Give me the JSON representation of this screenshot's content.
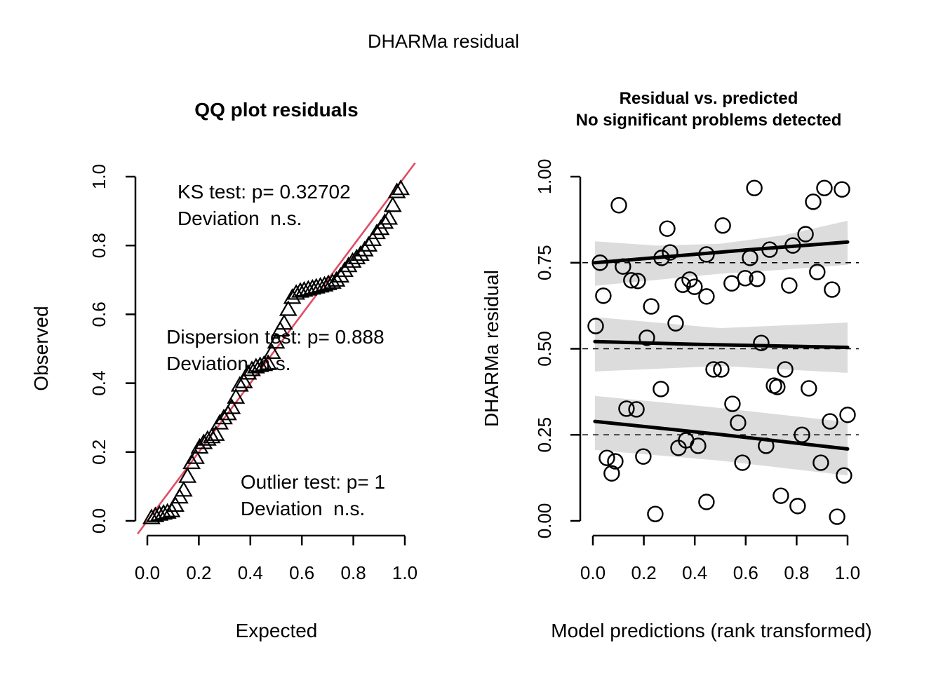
{
  "header": {
    "title": "DHARMa residual"
  },
  "colors": {
    "reference_line": "#e04e63",
    "band": "#dcdcdc",
    "marker": "#000000",
    "quantile_line": "#000000",
    "dashed_line": "#000000",
    "axis": "#000000"
  },
  "chart_data": [
    {
      "type": "scatter",
      "id": "qq",
      "title": "QQ plot residuals",
      "xlabel": "Expected",
      "ylabel": "Observed",
      "xlim": [
        0,
        1
      ],
      "ylim": [
        0,
        1
      ],
      "grid": false,
      "marker": "triangle-up-open",
      "xticks": [
        "0.0",
        "0.2",
        "0.4",
        "0.6",
        "0.8",
        "1.0"
      ],
      "yticks": [
        "0.0",
        "0.2",
        "0.4",
        "0.6",
        "0.8",
        "1.0"
      ],
      "reference_line": {
        "from": [
          0,
          0
        ],
        "to": [
          1,
          1
        ]
      },
      "annotations": [
        {
          "x": 0.117,
          "y": 0.937,
          "lines": [
            "KS test: p= 0.32702",
            "Deviation  n.s."
          ]
        },
        {
          "x": 0.074,
          "y": 0.515,
          "lines": [
            "Dispersion test: p= 0.888",
            "Deviation  n.s."
          ]
        },
        {
          "x": 0.362,
          "y": 0.094,
          "lines": [
            "Outlier test: p= 1",
            "Deviation  n.s."
          ]
        }
      ],
      "points": [
        [
          0.016,
          0.01
        ],
        [
          0.031,
          0.016
        ],
        [
          0.047,
          0.02
        ],
        [
          0.063,
          0.023
        ],
        [
          0.078,
          0.026
        ],
        [
          0.094,
          0.03
        ],
        [
          0.109,
          0.046
        ],
        [
          0.125,
          0.07
        ],
        [
          0.141,
          0.09
        ],
        [
          0.156,
          0.13
        ],
        [
          0.172,
          0.17
        ],
        [
          0.188,
          0.185
        ],
        [
          0.203,
          0.215
        ],
        [
          0.219,
          0.228
        ],
        [
          0.234,
          0.238
        ],
        [
          0.25,
          0.245
        ],
        [
          0.266,
          0.252
        ],
        [
          0.281,
          0.285
        ],
        [
          0.297,
          0.3
        ],
        [
          0.313,
          0.312
        ],
        [
          0.328,
          0.33
        ],
        [
          0.344,
          0.36
        ],
        [
          0.359,
          0.395
        ],
        [
          0.375,
          0.405
        ],
        [
          0.391,
          0.43
        ],
        [
          0.406,
          0.44
        ],
        [
          0.422,
          0.448
        ],
        [
          0.438,
          0.452
        ],
        [
          0.453,
          0.455
        ],
        [
          0.469,
          0.458
        ],
        [
          0.484,
          0.49
        ],
        [
          0.5,
          0.52
        ],
        [
          0.516,
          0.555
        ],
        [
          0.531,
          0.575
        ],
        [
          0.547,
          0.615
        ],
        [
          0.563,
          0.65
        ],
        [
          0.578,
          0.662
        ],
        [
          0.594,
          0.668
        ],
        [
          0.609,
          0.671
        ],
        [
          0.625,
          0.674
        ],
        [
          0.641,
          0.677
        ],
        [
          0.656,
          0.68
        ],
        [
          0.672,
          0.683
        ],
        [
          0.688,
          0.686
        ],
        [
          0.703,
          0.69
        ],
        [
          0.719,
          0.694
        ],
        [
          0.734,
          0.7
        ],
        [
          0.75,
          0.712
        ],
        [
          0.766,
          0.728
        ],
        [
          0.781,
          0.742
        ],
        [
          0.797,
          0.755
        ],
        [
          0.813,
          0.765
        ],
        [
          0.828,
          0.775
        ],
        [
          0.844,
          0.788
        ],
        [
          0.859,
          0.802
        ],
        [
          0.875,
          0.818
        ],
        [
          0.891,
          0.838
        ],
        [
          0.906,
          0.85
        ],
        [
          0.922,
          0.868
        ],
        [
          0.938,
          0.88
        ],
        [
          0.953,
          0.917
        ],
        [
          0.969,
          0.957
        ],
        [
          0.984,
          0.966
        ]
      ]
    },
    {
      "type": "scatter",
      "id": "residual-vs-predicted",
      "title": "Residual vs. predicted",
      "subtitle": "No significant problems detected",
      "xlabel": "Model predictions (rank transformed)",
      "ylabel": "DHARMa residual",
      "xlim": [
        0,
        1
      ],
      "ylim": [
        0,
        1
      ],
      "grid": false,
      "marker": "circle-open",
      "xticks": [
        "0.0",
        "0.2",
        "0.4",
        "0.6",
        "0.8",
        "1.0"
      ],
      "yticks": [
        "0.00",
        "0.25",
        "0.50",
        "0.75",
        "1.00"
      ],
      "dashed_hlines": [
        0.25,
        0.5,
        0.75
      ],
      "quantile_lines": [
        {
          "name": "q0.75",
          "points": [
            [
              0.008,
              0.75
            ],
            [
              0.3,
              0.768
            ],
            [
              0.6,
              0.787
            ],
            [
              1.0,
              0.81
            ]
          ]
        },
        {
          "name": "q0.50",
          "points": [
            [
              0.008,
              0.521
            ],
            [
              0.4,
              0.513
            ],
            [
              1.0,
              0.504
            ]
          ]
        },
        {
          "name": "q0.25",
          "points": [
            [
              0.008,
              0.289
            ],
            [
              0.5,
              0.251
            ],
            [
              1.0,
              0.209
            ]
          ]
        }
      ],
      "bands": [
        {
          "name": "q0.75-band",
          "upper": [
            [
              0.008,
              0.812
            ],
            [
              0.25,
              0.8
            ],
            [
              0.5,
              0.805
            ],
            [
              0.75,
              0.83
            ],
            [
              1.0,
              0.872
            ]
          ],
          "lower": [
            [
              0.008,
              0.683
            ],
            [
              0.25,
              0.7
            ],
            [
              0.5,
              0.718
            ],
            [
              0.75,
              0.73
            ],
            [
              1.0,
              0.744
            ]
          ]
        },
        {
          "name": "q0.50-band",
          "upper": [
            [
              0.008,
              0.592
            ],
            [
              0.5,
              0.56
            ],
            [
              1.0,
              0.576
            ]
          ],
          "lower": [
            [
              0.008,
              0.434
            ],
            [
              0.5,
              0.45
            ],
            [
              1.0,
              0.43
            ]
          ]
        },
        {
          "name": "q0.25-band",
          "upper": [
            [
              0.008,
              0.363
            ],
            [
              0.5,
              0.328
            ],
            [
              1.0,
              0.287
            ]
          ],
          "lower": [
            [
              0.008,
              0.206
            ],
            [
              0.5,
              0.175
            ],
            [
              1.0,
              0.132
            ]
          ]
        }
      ],
      "points": [
        [
          0.102,
          0.917
        ],
        [
          0.292,
          0.849
        ],
        [
          0.51,
          0.858
        ],
        [
          0.028,
          0.75
        ],
        [
          0.118,
          0.739
        ],
        [
          0.27,
          0.764
        ],
        [
          0.303,
          0.78
        ],
        [
          0.446,
          0.774
        ],
        [
          0.151,
          0.699
        ],
        [
          0.176,
          0.697
        ],
        [
          0.353,
          0.686
        ],
        [
          0.38,
          0.701
        ],
        [
          0.399,
          0.68
        ],
        [
          0.041,
          0.654
        ],
        [
          0.446,
          0.652
        ],
        [
          0.229,
          0.623
        ],
        [
          0.325,
          0.574
        ],
        [
          0.011,
          0.566
        ],
        [
          0.212,
          0.532
        ],
        [
          0.634,
          0.967
        ],
        [
          0.909,
          0.967
        ],
        [
          0.978,
          0.963
        ],
        [
          0.865,
          0.927
        ],
        [
          0.835,
          0.833
        ],
        [
          0.785,
          0.8
        ],
        [
          0.694,
          0.788
        ],
        [
          0.617,
          0.764
        ],
        [
          0.881,
          0.723
        ],
        [
          0.545,
          0.69
        ],
        [
          0.598,
          0.705
        ],
        [
          0.645,
          0.703
        ],
        [
          0.771,
          0.684
        ],
        [
          0.939,
          0.672
        ],
        [
          0.661,
          0.517
        ],
        [
          0.474,
          0.44
        ],
        [
          0.504,
          0.44
        ],
        [
          0.267,
          0.383
        ],
        [
          0.132,
          0.326
        ],
        [
          0.171,
          0.324
        ],
        [
          0.366,
          0.234
        ],
        [
          0.336,
          0.212
        ],
        [
          0.413,
          0.218
        ],
        [
          0.055,
          0.183
        ],
        [
          0.088,
          0.173
        ],
        [
          0.198,
          0.187
        ],
        [
          0.074,
          0.138
        ],
        [
          0.446,
          0.055
        ],
        [
          0.245,
          0.02
        ],
        [
          0.755,
          0.44
        ],
        [
          0.711,
          0.393
        ],
        [
          0.724,
          0.389
        ],
        [
          0.848,
          0.385
        ],
        [
          0.548,
          0.34
        ],
        [
          0.57,
          0.285
        ],
        [
          0.931,
          0.289
        ],
        [
          1.0,
          0.308
        ],
        [
          0.821,
          0.25
        ],
        [
          0.68,
          0.218
        ],
        [
          0.587,
          0.169
        ],
        [
          0.895,
          0.169
        ],
        [
          0.986,
          0.132
        ],
        [
          0.738,
          0.073
        ],
        [
          0.804,
          0.043
        ],
        [
          0.959,
          0.012
        ]
      ]
    }
  ]
}
